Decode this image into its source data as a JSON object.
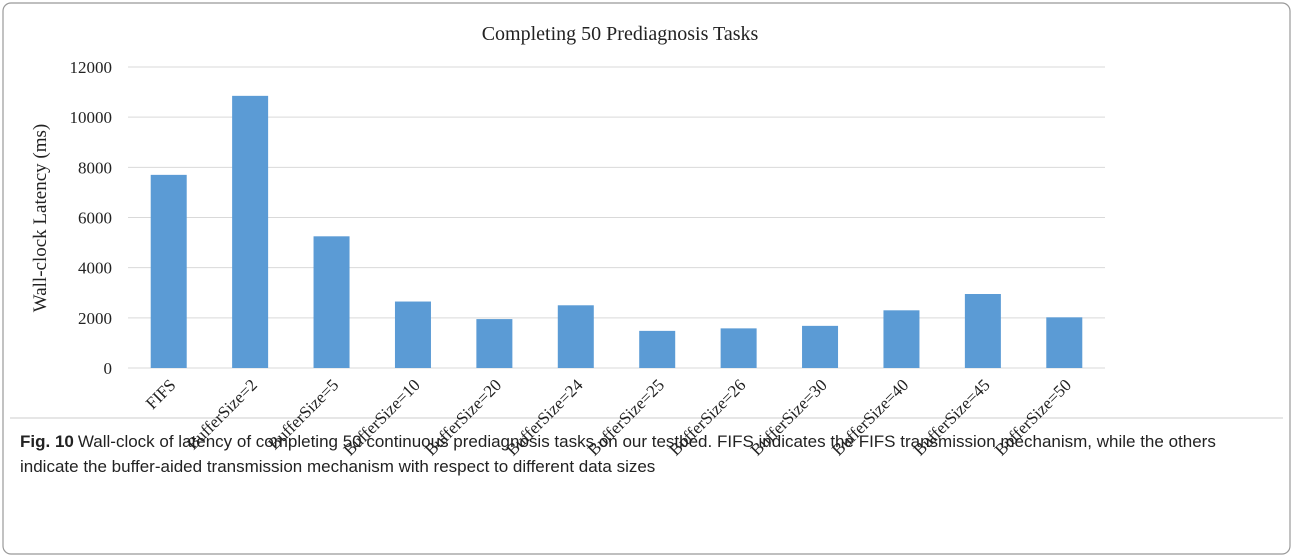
{
  "chart_data": {
    "type": "bar",
    "title": "Completing 50 Prediagnosis Tasks",
    "y_label": "Wall-clock Latency (ms)",
    "categories": [
      "FIFS",
      "BufferSize=2",
      "BufferSize=5",
      "BufferSize=10",
      "BufferSize=20",
      "BufferSize=24",
      "BufferSize=25",
      "BufferSize=26",
      "BufferSize=30",
      "BufferSize=40",
      "BufferSize=45",
      "BufferSize=50"
    ],
    "values": [
      7700,
      10850,
      5250,
      2650,
      1950,
      2500,
      1480,
      1580,
      1680,
      2300,
      2950,
      2020
    ],
    "color": "#5b9bd5",
    "ylim": [
      0,
      12000
    ],
    "yticks": [
      0,
      2000,
      4000,
      6000,
      8000,
      10000,
      12000
    ],
    "grid": true
  },
  "caption": {
    "label": "Fig. 10",
    "text": "Wall-clock of latency of completing 50 continuous prediagnosis tasks on our testbed. FIFS indicates the FIFS transmission mechanism, while the others indicate the buffer-aided transmission mechanism with respect to different data sizes"
  }
}
